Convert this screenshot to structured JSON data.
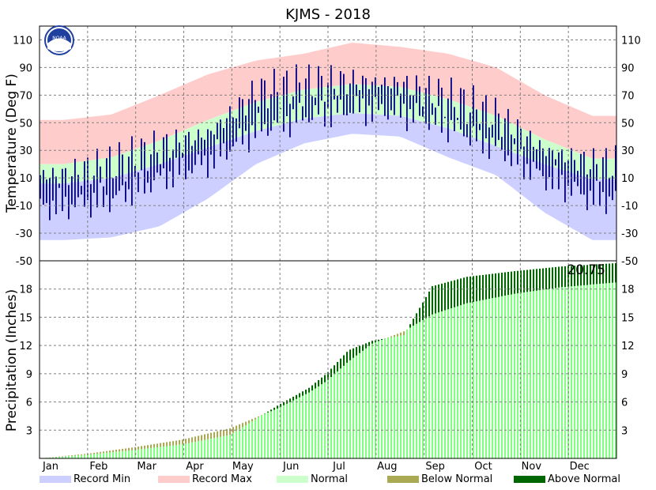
{
  "chart_data": [
    {
      "type": "area",
      "panel": "temperature",
      "title": "KJMS - 2018",
      "ylabel": "Temperature (Deg F)",
      "ylim": [
        -50,
        120
      ],
      "yticks": [
        "110",
        "90",
        "70",
        "50",
        "30",
        "10",
        "-10",
        "-30",
        "-50"
      ],
      "yticks_values": [
        110,
        90,
        70,
        50,
        30,
        10,
        -10,
        -30,
        -50
      ],
      "grid": true,
      "months": [
        "Jan",
        "Feb",
        "Mar",
        "Apr",
        "May",
        "Jun",
        "Jul",
        "Aug",
        "Sep",
        "Oct",
        "Nov",
        "Dec"
      ],
      "series": [
        {
          "name": "Record Min",
          "color": "#cccfff",
          "x_month_mid": [
            1,
            2,
            3,
            4,
            5,
            6,
            7,
            8,
            9,
            10,
            11,
            12
          ],
          "values": [
            -35,
            -33,
            -25,
            -5,
            20,
            35,
            42,
            40,
            25,
            12,
            -15,
            -35
          ]
        },
        {
          "name": "Record Max",
          "color": "#ffcccc",
          "x_month_mid": [
            1,
            2,
            3,
            4,
            5,
            6,
            7,
            8,
            9,
            10,
            11,
            12
          ],
          "values": [
            52,
            56,
            70,
            85,
            95,
            100,
            108,
            105,
            100,
            90,
            70,
            55
          ]
        },
        {
          "name": "Normal",
          "color": "#ccffcc",
          "x_month_mid": [
            1,
            2,
            3,
            4,
            5,
            6,
            7,
            8,
            9,
            10,
            11,
            12
          ],
          "low": [
            6,
            10,
            20,
            32,
            44,
            53,
            57,
            55,
            46,
            33,
            20,
            9
          ],
          "high": [
            20,
            25,
            37,
            52,
            65,
            74,
            78,
            76,
            67,
            55,
            38,
            24
          ]
        },
        {
          "name": "Observed High",
          "color": "#000080",
          "x_month_mid": [
            1,
            2,
            3,
            4,
            5,
            6,
            7,
            8,
            9,
            10,
            11,
            12
          ],
          "values": [
            12,
            20,
            32,
            42,
            72,
            78,
            80,
            78,
            68,
            55,
            30,
            20
          ]
        },
        {
          "name": "Observed Low",
          "color": "#000080",
          "x_month_mid": [
            1,
            2,
            3,
            4,
            5,
            6,
            7,
            8,
            9,
            10,
            11,
            12
          ],
          "values": [
            -10,
            -5,
            10,
            22,
            45,
            55,
            60,
            58,
            48,
            32,
            10,
            -5
          ]
        }
      ]
    },
    {
      "type": "area",
      "panel": "precipitation",
      "ylabel": "Precipitation (Inches)",
      "ylim": [
        0,
        21
      ],
      "yticks": [
        "3",
        "6",
        "9",
        "12",
        "15",
        "18"
      ],
      "yticks_values": [
        3,
        6,
        9,
        12,
        15,
        18
      ],
      "grid": true,
      "annotation": "20.75",
      "x_day": [
        0,
        30,
        60,
        90,
        120,
        150,
        170,
        181,
        195,
        210,
        230,
        240,
        248,
        270,
        300,
        330,
        364
      ],
      "series": [
        {
          "name": "Normal",
          "color": "#80ff80",
          "values": [
            0,
            0.5,
            1.2,
            2.0,
            3.2,
            5.3,
            7.0,
            8.2,
            10.3,
            12.2,
            13.5,
            14.5,
            15.3,
            16.5,
            17.5,
            18.2,
            18.7
          ]
        },
        {
          "name": "Observed",
          "color_below": "#aaaa55",
          "color_above": "#006600",
          "values": [
            0,
            0.4,
            0.9,
            1.5,
            2.5,
            5.6,
            7.5,
            9.0,
            11.5,
            12.5,
            13.1,
            16.0,
            18.3,
            19.3,
            19.9,
            20.4,
            20.75
          ]
        }
      ]
    }
  ],
  "legend": [
    {
      "label": "Record Min",
      "color": "#cccfff"
    },
    {
      "label": "Record Max",
      "color": "#ffcccc"
    },
    {
      "label": "Normal",
      "color": "#ccffcc"
    },
    {
      "label": "Below Normal",
      "color": "#aaaa55"
    },
    {
      "label": "Above Normal",
      "color": "#006600"
    }
  ],
  "logo": {
    "text": "NOAA",
    "icon": "noaa-logo-icon"
  }
}
